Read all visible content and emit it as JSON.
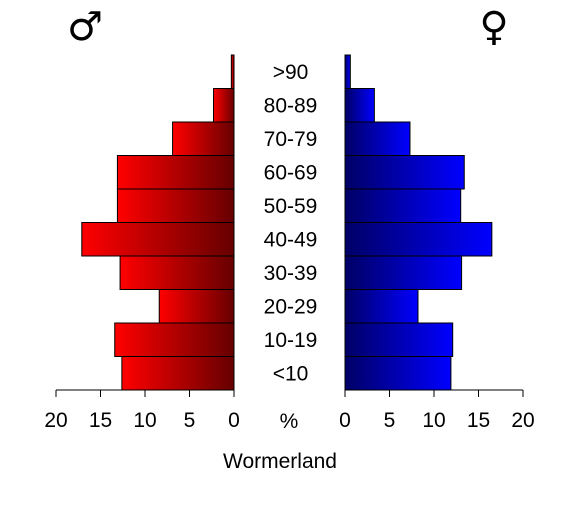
{
  "chart_data": {
    "type": "bar",
    "orientation": "horizontal",
    "subtype": "population-pyramid",
    "title": "Wormerland",
    "unit_label": "%",
    "categories": [
      "<10",
      "10-19",
      "20-29",
      "30-39",
      "40-49",
      "50-59",
      "60-69",
      "70-79",
      "80-89",
      ">90"
    ],
    "series": [
      {
        "symbol": "♂",
        "side": "left",
        "color": "#ff0000",
        "color_dark": "#660000",
        "values": [
          12.6,
          13.4,
          8.4,
          12.8,
          17.1,
          13.1,
          13.1,
          6.9,
          2.3,
          0.3
        ]
      },
      {
        "symbol": "♀",
        "side": "right",
        "color": "#0000ff",
        "color_dark": "#000066",
        "values": [
          11.9,
          12.1,
          8.2,
          13.1,
          16.5,
          13.0,
          13.4,
          7.3,
          3.3,
          0.6
        ]
      }
    ],
    "xlim": [
      0,
      20
    ],
    "xticks": [
      0,
      5,
      10,
      15,
      20
    ],
    "grid": false,
    "legend": "none"
  }
}
